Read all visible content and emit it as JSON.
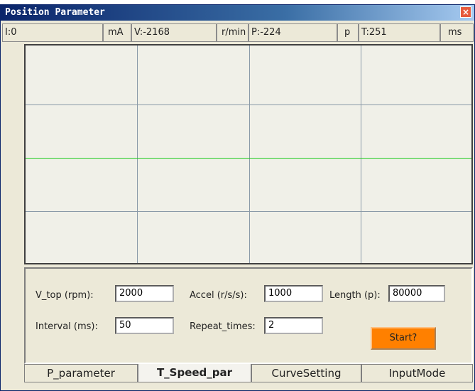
{
  "window": {
    "title": "Position Parameter",
    "close": "×"
  },
  "status": [
    {
      "label": "I:0",
      "unit": "mA"
    },
    {
      "label": "V:-2168",
      "unit": "r/min"
    },
    {
      "label": "P:-224",
      "unit": "p"
    },
    {
      "label": "T:251",
      "unit": "ms"
    }
  ],
  "form": {
    "fields": [
      {
        "label": "V_top (rpm):",
        "value": "2000"
      },
      {
        "label": "Accel (r/s/s):",
        "value": "1000"
      },
      {
        "label": "Length (p):",
        "value": "80000"
      },
      {
        "label": "Interval (ms):",
        "value": "50"
      },
      {
        "label": "Repeat_times:",
        "value": "2"
      }
    ],
    "button": "Start?"
  },
  "tabs": [
    "P_parameter",
    "T_Speed_par",
    "CurveSetting",
    "InputMode"
  ]
}
